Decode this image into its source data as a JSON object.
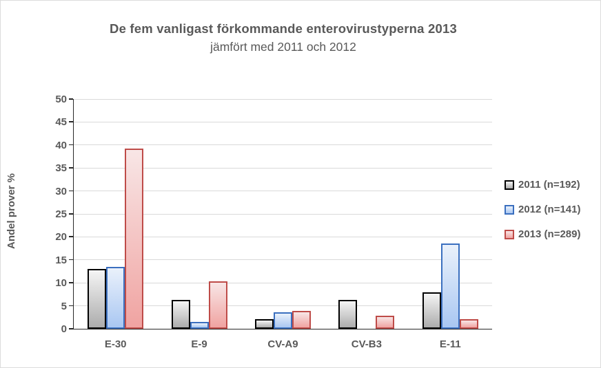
{
  "frame": {
    "background": "#FFFFFF",
    "border_color": "#DBDBDB",
    "text_color": "#595959",
    "axis_color": "#262626",
    "grid_color": "#D9D9D9"
  },
  "title": {
    "line1": "De fem vanligast förkommande enterovirustyperna 2013",
    "line2": "jämfört med 2011 och 2012"
  },
  "chart_data": {
    "type": "bar",
    "title": "De fem vanligast förkommande enterovirustyperna 2013",
    "subtitle": "jämfört med 2011 och 2012",
    "ylabel": "Andel prover  %",
    "xlabel": "",
    "ylim": [
      0,
      50
    ],
    "ytick_step": 5,
    "grid": true,
    "legend_position": "right",
    "categories": [
      "E-30",
      "E-9",
      "CV-A9",
      "CV-B3",
      "E-11"
    ],
    "series": [
      {
        "name": "2011 (n=192)",
        "values": [
          13.0,
          6.3,
          2.1,
          6.3,
          7.9
        ],
        "border_color": "#000000",
        "fill_top": "#F5F5F5",
        "fill_bottom": "#ACACAC"
      },
      {
        "name": "2012 (n=141)",
        "values": [
          13.5,
          1.5,
          3.6,
          0,
          18.5
        ],
        "border_color": "#3A6FBF",
        "fill_top": "#EAF1FB",
        "fill_bottom": "#A9C7F2"
      },
      {
        "name": "2013 (n=289)",
        "values": [
          39.2,
          10.4,
          3.9,
          2.9,
          2.1
        ],
        "border_color": "#BE4B48",
        "fill_top": "#F8E6E6",
        "fill_bottom": "#F0A3A1"
      }
    ]
  }
}
